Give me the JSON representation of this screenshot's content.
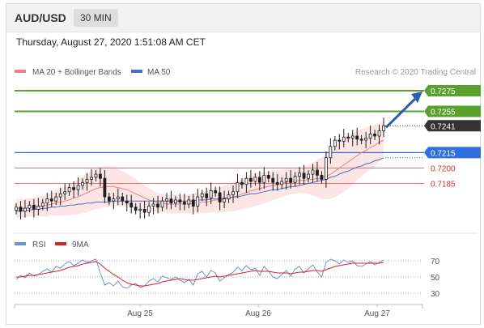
{
  "header": {
    "pair": "AUD/USD",
    "timeframe": "30 MIN"
  },
  "datetime": "Thursday, August 27, 2020 1:51:08 AM CET",
  "legend": {
    "ma20": "MA 20 + Bollinger Bands",
    "ma50": "MA 50",
    "rsi": "RSI",
    "ma9": "9MA",
    "credit": "Research © 2020 Trading Central"
  },
  "colors": {
    "ma20": "#f08080",
    "ma50": "#4a6fbf",
    "band": "#fbdcdc",
    "resistance": "#5aa02c",
    "support": "#2f6fe0",
    "red_line": "#e06060",
    "arrow": "#2a5db0",
    "candle": "#1e1e1e",
    "rsi": "#7090d8",
    "ma9": "#e02020",
    "current": "#333333"
  },
  "levels": [
    {
      "value": 0.7275,
      "label": "0.7275",
      "style": "resistance"
    },
    {
      "value": 0.7255,
      "label": "0.7255",
      "style": "resistance"
    },
    {
      "value": 0.7241,
      "label": "0.7241",
      "style": "current"
    },
    {
      "value": 0.7215,
      "label": "0.7215",
      "style": "support"
    },
    {
      "value": 0.72,
      "label": "0.7200",
      "style": "red"
    },
    {
      "value": 0.7185,
      "label": "0.7185",
      "style": "red"
    }
  ],
  "rsi_levels": [
    "70",
    "50",
    "30"
  ],
  "x_labels": [
    "Aug 25",
    "Aug 26",
    "Aug 27"
  ],
  "chart_data": {
    "type": "line",
    "title": "AUD/USD",
    "price_range": [
      0.7143,
      0.7286
    ],
    "close": [
      0.7162,
      0.7158,
      0.7161,
      0.7164,
      0.716,
      0.7163,
      0.7166,
      0.717,
      0.7168,
      0.7172,
      0.7175,
      0.7177,
      0.7181,
      0.7179,
      0.7183,
      0.7186,
      0.7189,
      0.7191,
      0.7194,
      0.719,
      0.7172,
      0.7168,
      0.717,
      0.7172,
      0.7168,
      0.7166,
      0.7162,
      0.7159,
      0.716,
      0.7157,
      0.7163,
      0.7165,
      0.7162,
      0.7168,
      0.717,
      0.7166,
      0.7169,
      0.7167,
      0.7165,
      0.7169,
      0.7163,
      0.7172,
      0.7175,
      0.7171,
      0.7178,
      0.7176,
      0.7167,
      0.717,
      0.7174,
      0.7177,
      0.7186,
      0.7184,
      0.719,
      0.7187,
      0.7191,
      0.7186,
      0.7193,
      0.719,
      0.7186,
      0.7184,
      0.7187,
      0.719,
      0.7186,
      0.7192,
      0.7195,
      0.719,
      0.7194,
      0.7198,
      0.7193,
      0.7189,
      0.721,
      0.7221,
      0.7227,
      0.7226,
      0.723,
      0.7229,
      0.7231,
      0.7228,
      0.7227,
      0.7229,
      0.7233,
      0.7231,
      0.7236,
      0.7241
    ],
    "ma20": [
      0.7161,
      0.7161,
      0.7161,
      0.7162,
      0.7162,
      0.7163,
      0.7163,
      0.7164,
      0.7165,
      0.7166,
      0.7167,
      0.7168,
      0.7169,
      0.7171,
      0.7172,
      0.7174,
      0.7176,
      0.7178,
      0.718,
      0.7181,
      0.7182,
      0.7182,
      0.7182,
      0.7181,
      0.718,
      0.7179,
      0.7177,
      0.7175,
      0.7173,
      0.7171,
      0.7169,
      0.7168,
      0.7166,
      0.7166,
      0.7165,
      0.7165,
      0.7165,
      0.7165,
      0.7165,
      0.7165,
      0.7166,
      0.7166,
      0.7167,
      0.7167,
      0.7168,
      0.7169,
      0.7169,
      0.717,
      0.7171,
      0.7172,
      0.7173,
      0.7175,
      0.7176,
      0.7178,
      0.7179,
      0.718,
      0.7181,
      0.7182,
      0.7183,
      0.7184,
      0.7185,
      0.7186,
      0.7187,
      0.7187,
      0.7188,
      0.7188,
      0.7189,
      0.7189,
      0.719,
      0.719,
      0.7192,
      0.7194,
      0.7197,
      0.72,
      0.7203,
      0.7206,
      0.7209,
      0.7212,
      0.7215,
      0.7217,
      0.722,
      0.7222,
      0.7225,
      0.7227
    ],
    "ma50": [
      0.7158,
      0.7158,
      0.7159,
      0.7159,
      0.716,
      0.716,
      0.7161,
      0.7161,
      0.7162,
      0.7162,
      0.7163,
      0.7163,
      0.7164,
      0.7164,
      0.7165,
      0.7165,
      0.7166,
      0.7166,
      0.7167,
      0.7167,
      0.7167,
      0.7167,
      0.7168,
      0.7168,
      0.7168,
      0.7168,
      0.7168,
      0.7168,
      0.7168,
      0.7168,
      0.7168,
      0.7168,
      0.7168,
      0.7168,
      0.7168,
      0.7168,
      0.7168,
      0.7168,
      0.7168,
      0.7168,
      0.7168,
      0.7169,
      0.7169,
      0.7169,
      0.717,
      0.717,
      0.717,
      0.7171,
      0.7171,
      0.7172,
      0.7172,
      0.7173,
      0.7174,
      0.7175,
      0.7175,
      0.7176,
      0.7177,
      0.7178,
      0.7179,
      0.7179,
      0.718,
      0.7181,
      0.7182,
      0.7182,
      0.7183,
      0.7184,
      0.7185,
      0.7186,
      0.7187,
      0.7188,
      0.7189,
      0.7191,
      0.7192,
      0.7194,
      0.7196,
      0.7197,
      0.7199,
      0.7201,
      0.7202,
      0.7204,
      0.7205,
      0.7207,
      0.7208,
      0.721
    ],
    "band_width": [
      0.0009,
      0.0009,
      0.0009,
      0.0009,
      0.0009,
      0.001,
      0.001,
      0.0011,
      0.0011,
      0.0012,
      0.0013,
      0.0014,
      0.0015,
      0.0016,
      0.0017,
      0.0018,
      0.0019,
      0.0019,
      0.002,
      0.002,
      0.002,
      0.002,
      0.0019,
      0.0018,
      0.0017,
      0.0016,
      0.0015,
      0.0014,
      0.0013,
      0.0012,
      0.0011,
      0.001,
      0.0009,
      0.0009,
      0.0009,
      0.0009,
      0.0009,
      0.0009,
      0.0009,
      0.0009,
      0.0009,
      0.001,
      0.001,
      0.0011,
      0.0011,
      0.0012,
      0.0012,
      0.0013,
      0.0013,
      0.0014,
      0.0014,
      0.0015,
      0.0015,
      0.0016,
      0.0016,
      0.0016,
      0.0015,
      0.0015,
      0.0014,
      0.0014,
      0.0013,
      0.0013,
      0.0012,
      0.0012,
      0.0012,
      0.0013,
      0.0014,
      0.0016,
      0.0018,
      0.002,
      0.0022,
      0.0024,
      0.0025,
      0.0026,
      0.0026,
      0.0026,
      0.0025,
      0.0024,
      0.0023,
      0.0022,
      0.0021,
      0.002,
      0.0019,
      0.0018
    ],
    "rsi": [
      47,
      52,
      49,
      55,
      51,
      53,
      57,
      60,
      56,
      63,
      61,
      66,
      69,
      64,
      67,
      71,
      68,
      70,
      72,
      55,
      40,
      43,
      39,
      45,
      38,
      36,
      40,
      42,
      37,
      39,
      45,
      48,
      44,
      51,
      49,
      47,
      50,
      46,
      43,
      47,
      40,
      54,
      57,
      50,
      58,
      55,
      45,
      49,
      53,
      56,
      62,
      58,
      64,
      59,
      61,
      52,
      63,
      57,
      50,
      48,
      53,
      58,
      51,
      60,
      63,
      55,
      60,
      65,
      56,
      50,
      68,
      72,
      70,
      66,
      71,
      68,
      70,
      64,
      63,
      66,
      69,
      65,
      68,
      71
    ],
    "ma9": [
      50,
      50,
      51,
      52,
      52,
      53,
      54,
      55,
      56,
      57,
      58,
      60,
      62,
      63,
      64,
      66,
      67,
      68,
      69,
      66,
      61,
      57,
      53,
      50,
      46,
      43,
      41,
      40,
      39,
      39,
      40,
      41,
      42,
      44,
      45,
      46,
      47,
      48,
      47,
      46,
      46,
      47,
      48,
      49,
      50,
      51,
      50,
      51,
      52,
      53,
      54,
      55,
      56,
      57,
      58,
      57,
      57,
      57,
      56,
      55,
      55,
      55,
      54,
      55,
      56,
      56,
      57,
      58,
      58,
      57,
      59,
      61,
      63,
      64,
      65,
      66,
      67,
      67,
      67,
      67,
      67,
      67,
      67,
      68
    ],
    "rsi_range": [
      20,
      80
    ],
    "projection": {
      "from": 0.7241,
      "to": 0.7275
    }
  }
}
